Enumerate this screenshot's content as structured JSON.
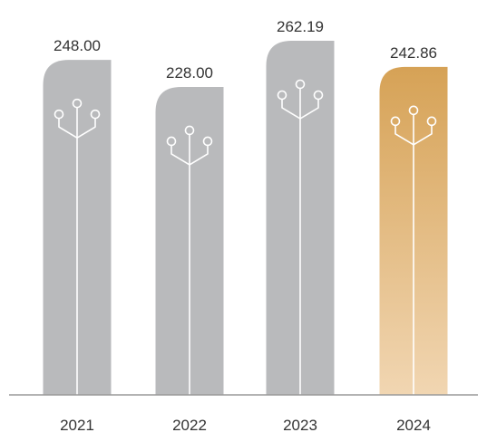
{
  "chart_data": {
    "type": "bar",
    "categories": [
      "2021",
      "2022",
      "2023",
      "2024"
    ],
    "values": [
      248.0,
      228.0,
      262.19,
      242.86
    ],
    "value_labels": [
      "248.00",
      "228.00",
      "262.19",
      "242.86"
    ],
    "title": "",
    "xlabel": "",
    "ylabel": "",
    "ylim": [
      0,
      262.19
    ],
    "grid": false,
    "legend": "none",
    "highlight_index": 3,
    "colors": {
      "bar": "#b9babc",
      "highlight_top": "#d6a256",
      "highlight_bottom": "#f1d6b2",
      "icon_stroke": "#ffffff",
      "baseline": "#9a9a9a",
      "text": "#333333"
    },
    "bar_icon": "circuit-tree-icon"
  }
}
